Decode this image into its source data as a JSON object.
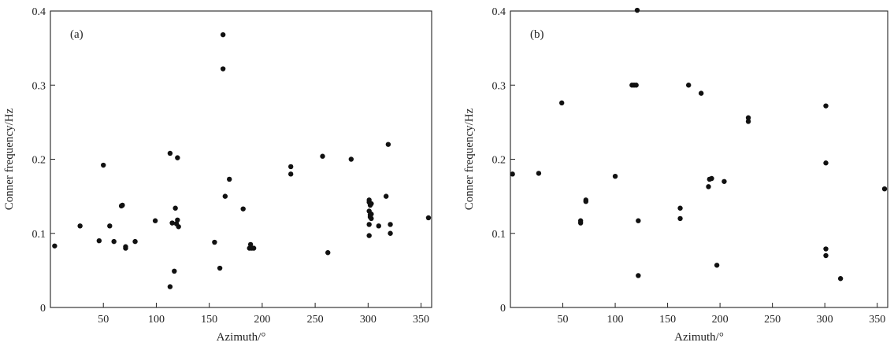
{
  "chart_data": [
    {
      "type": "scatter",
      "panel_label": "(a)",
      "xlabel": "Azimuth/°",
      "ylabel": "Conner frequency/Hz",
      "xlim": [
        0,
        360
      ],
      "ylim": [
        0,
        0.4
      ],
      "xticks": [
        50,
        100,
        150,
        200,
        250,
        300,
        350
      ],
      "yticks": [
        0,
        0.1,
        0.2,
        0.3,
        0.4
      ],
      "xtick_labels": [
        "50",
        "100",
        "150",
        "200",
        "250",
        "300",
        "350"
      ],
      "ytick_labels": [
        "0",
        "0.1",
        "0.2",
        "0.3",
        "0.4"
      ],
      "grid": false,
      "points": [
        {
          "x": 4,
          "y": 0.083
        },
        {
          "x": 28,
          "y": 0.11
        },
        {
          "x": 46,
          "y": 0.09
        },
        {
          "x": 50,
          "y": 0.192
        },
        {
          "x": 56,
          "y": 0.11
        },
        {
          "x": 60,
          "y": 0.089
        },
        {
          "x": 67,
          "y": 0.137
        },
        {
          "x": 68,
          "y": 0.138
        },
        {
          "x": 71,
          "y": 0.082
        },
        {
          "x": 71,
          "y": 0.08
        },
        {
          "x": 80,
          "y": 0.089
        },
        {
          "x": 99,
          "y": 0.117
        },
        {
          "x": 113,
          "y": 0.208
        },
        {
          "x": 113,
          "y": 0.028
        },
        {
          "x": 115,
          "y": 0.114
        },
        {
          "x": 117,
          "y": 0.049
        },
        {
          "x": 118,
          "y": 0.134
        },
        {
          "x": 119,
          "y": 0.113
        },
        {
          "x": 120,
          "y": 0.202
        },
        {
          "x": 120,
          "y": 0.118
        },
        {
          "x": 121,
          "y": 0.109
        },
        {
          "x": 155,
          "y": 0.088
        },
        {
          "x": 160,
          "y": 0.053
        },
        {
          "x": 163,
          "y": 0.368
        },
        {
          "x": 163,
          "y": 0.322
        },
        {
          "x": 165,
          "y": 0.15
        },
        {
          "x": 169,
          "y": 0.173
        },
        {
          "x": 182,
          "y": 0.133
        },
        {
          "x": 188,
          "y": 0.08
        },
        {
          "x": 189,
          "y": 0.085
        },
        {
          "x": 190,
          "y": 0.08
        },
        {
          "x": 192,
          "y": 0.08
        },
        {
          "x": 227,
          "y": 0.19
        },
        {
          "x": 227,
          "y": 0.18
        },
        {
          "x": 257,
          "y": 0.204
        },
        {
          "x": 262,
          "y": 0.074
        },
        {
          "x": 284,
          "y": 0.2
        },
        {
          "x": 301,
          "y": 0.145
        },
        {
          "x": 301,
          "y": 0.142
        },
        {
          "x": 302,
          "y": 0.138
        },
        {
          "x": 301,
          "y": 0.13
        },
        {
          "x": 302,
          "y": 0.125
        },
        {
          "x": 302,
          "y": 0.122
        },
        {
          "x": 303,
          "y": 0.12
        },
        {
          "x": 301,
          "y": 0.112
        },
        {
          "x": 301,
          "y": 0.097
        },
        {
          "x": 303,
          "y": 0.14
        },
        {
          "x": 303,
          "y": 0.126
        },
        {
          "x": 310,
          "y": 0.11
        },
        {
          "x": 317,
          "y": 0.15
        },
        {
          "x": 319,
          "y": 0.22
        },
        {
          "x": 321,
          "y": 0.112
        },
        {
          "x": 321,
          "y": 0.1
        },
        {
          "x": 357,
          "y": 0.121
        }
      ]
    },
    {
      "type": "scatter",
      "panel_label": "(b)",
      "xlabel": "Azimuth/°",
      "ylabel": "Conner frequency/Hz",
      "xlim": [
        0,
        360
      ],
      "ylim": [
        0,
        0.4
      ],
      "xticks": [
        50,
        100,
        150,
        200,
        250,
        300,
        350
      ],
      "yticks": [
        0,
        0.1,
        0.2,
        0.3,
        0.4
      ],
      "xtick_labels": [
        "50",
        "100",
        "150",
        "200",
        "250",
        "300",
        "350"
      ],
      "ytick_labels": [
        "0",
        "0.1",
        "0.2",
        "0.3",
        "0.4"
      ],
      "grid": false,
      "points": [
        {
          "x": 2,
          "y": 0.18
        },
        {
          "x": 27,
          "y": 0.181
        },
        {
          "x": 49,
          "y": 0.276
        },
        {
          "x": 67,
          "y": 0.117
        },
        {
          "x": 67,
          "y": 0.114
        },
        {
          "x": 72,
          "y": 0.145
        },
        {
          "x": 72,
          "y": 0.143
        },
        {
          "x": 100,
          "y": 0.177
        },
        {
          "x": 116,
          "y": 0.3
        },
        {
          "x": 118,
          "y": 0.3
        },
        {
          "x": 120,
          "y": 0.3
        },
        {
          "x": 121,
          "y": 0.401
        },
        {
          "x": 122,
          "y": 0.117
        },
        {
          "x": 122,
          "y": 0.043
        },
        {
          "x": 162,
          "y": 0.134
        },
        {
          "x": 162,
          "y": 0.12
        },
        {
          "x": 170,
          "y": 0.3
        },
        {
          "x": 182,
          "y": 0.289
        },
        {
          "x": 189,
          "y": 0.163
        },
        {
          "x": 190,
          "y": 0.173
        },
        {
          "x": 192,
          "y": 0.174
        },
        {
          "x": 197,
          "y": 0.057
        },
        {
          "x": 204,
          "y": 0.17
        },
        {
          "x": 227,
          "y": 0.256
        },
        {
          "x": 227,
          "y": 0.251
        },
        {
          "x": 301,
          "y": 0.272
        },
        {
          "x": 301,
          "y": 0.195
        },
        {
          "x": 301,
          "y": 0.079
        },
        {
          "x": 301,
          "y": 0.07
        },
        {
          "x": 315,
          "y": 0.039
        },
        {
          "x": 357,
          "y": 0.16
        }
      ]
    }
  ]
}
